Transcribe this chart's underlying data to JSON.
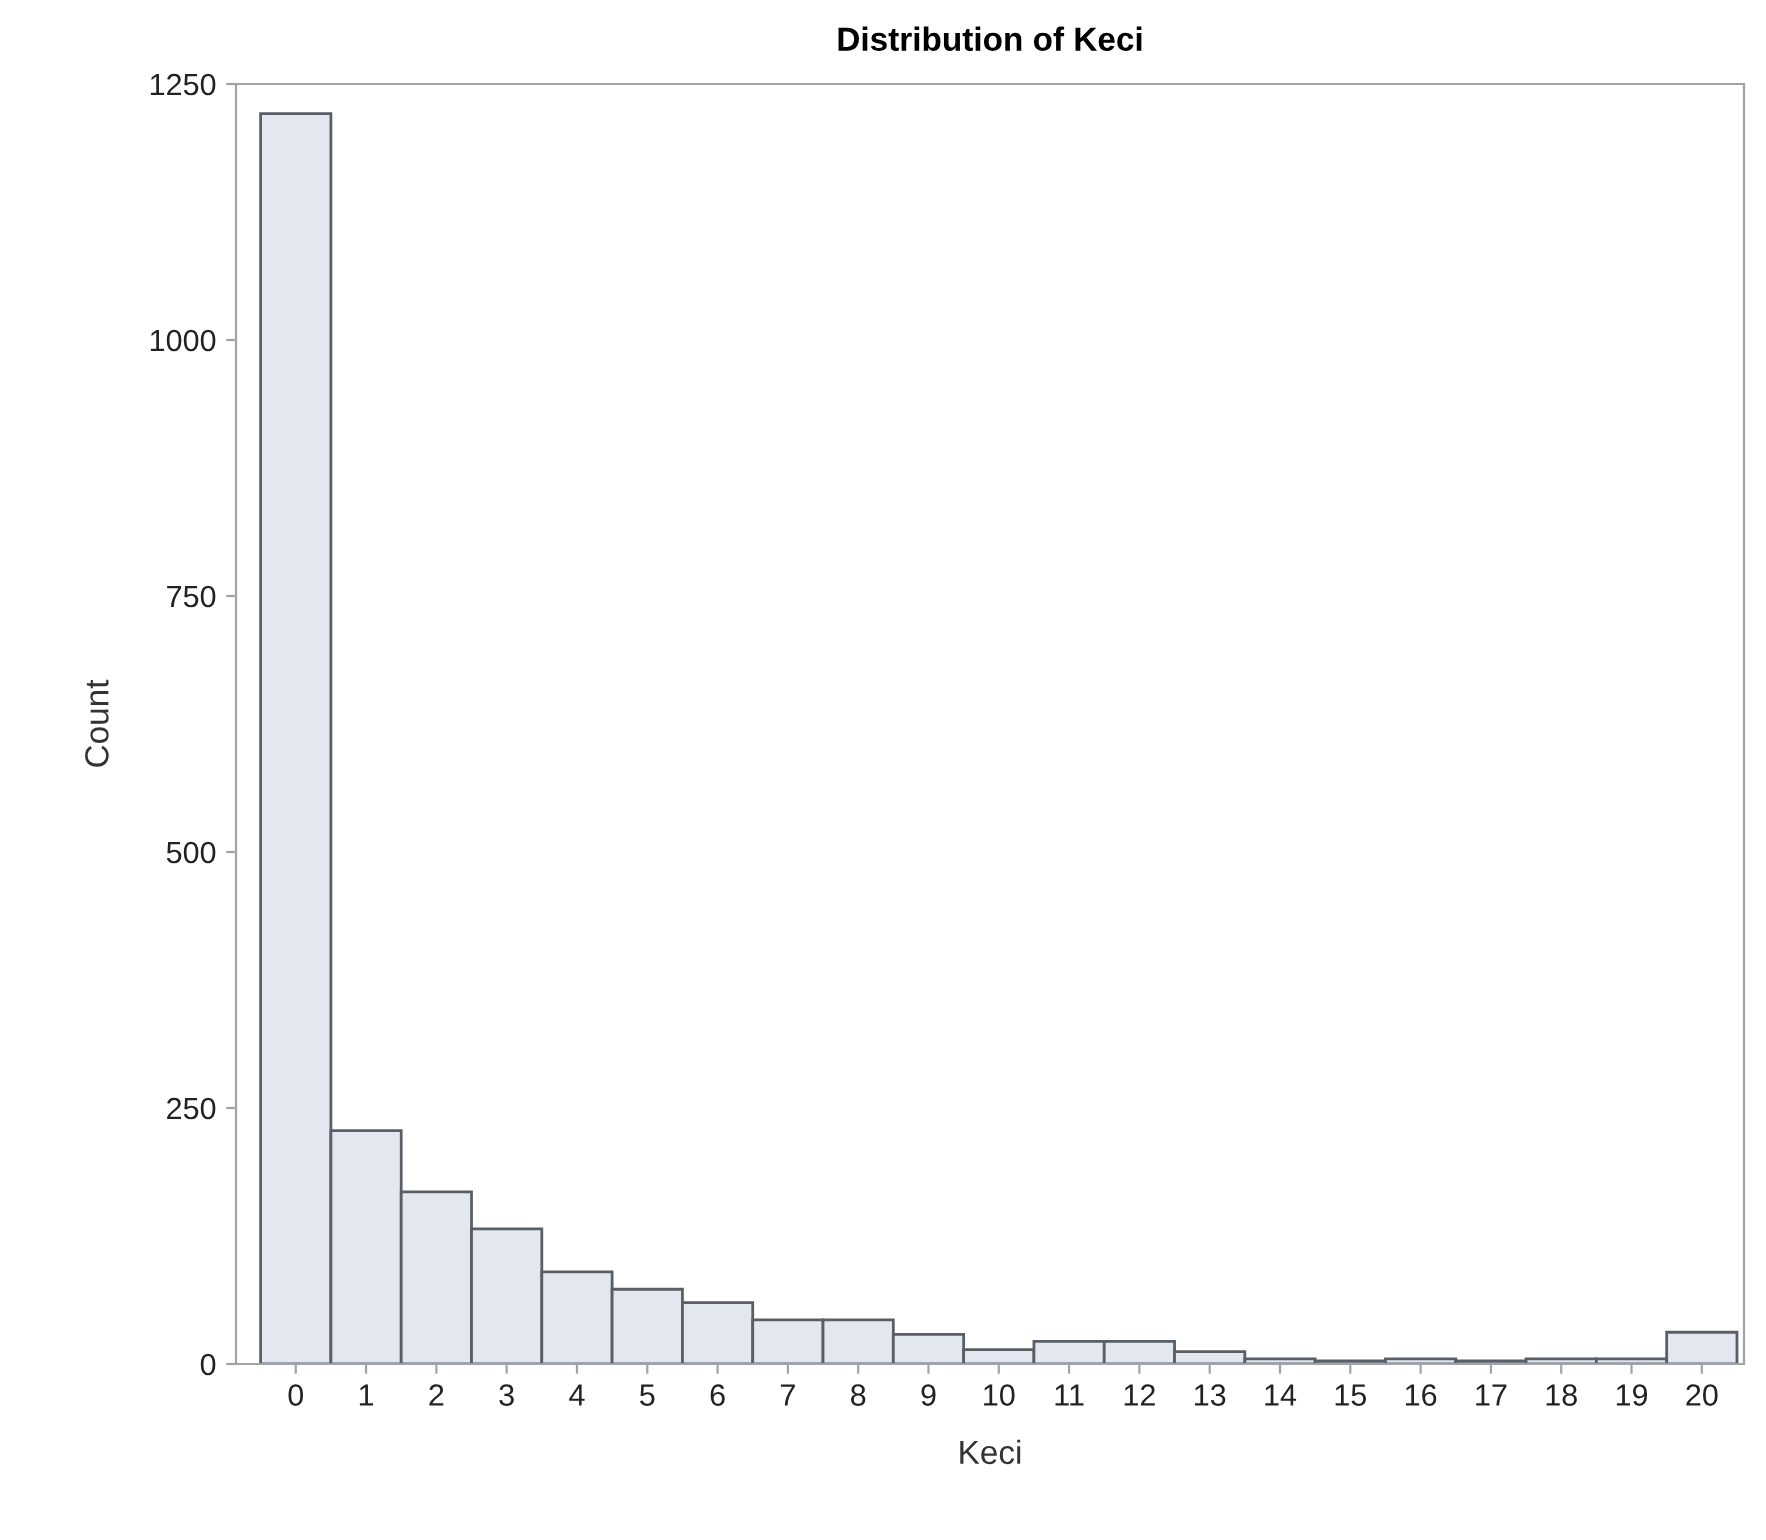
{
  "chart_data": {
    "type": "bar",
    "title": "Distribution of Keci",
    "xlabel": "Keci",
    "ylabel": "Count",
    "categories": [
      "0",
      "1",
      "2",
      "3",
      "4",
      "5",
      "6",
      "7",
      "8",
      "9",
      "10",
      "11",
      "12",
      "13",
      "14",
      "15",
      "16",
      "17",
      "18",
      "19",
      "20"
    ],
    "values": [
      1221,
      228,
      168,
      132,
      90,
      73,
      60,
      43,
      43,
      29,
      14,
      22,
      22,
      12,
      5,
      3,
      5,
      3,
      5,
      5,
      31
    ],
    "color": "#e3e7f0",
    "ylim": [
      0,
      1250
    ],
    "yticks": [
      0,
      250,
      500,
      750,
      1000,
      1250
    ],
    "grid": false
  }
}
